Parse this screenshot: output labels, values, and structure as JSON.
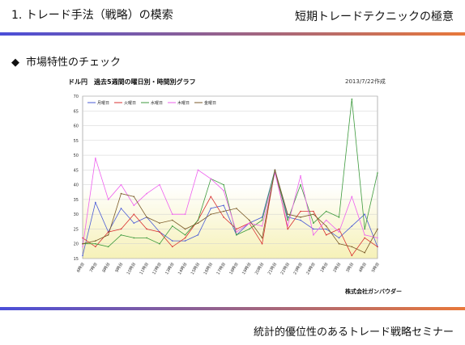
{
  "header": {
    "title": "1. トレード手法（戦略）の模索",
    "subtitle": "短期トレードテクニックの極意"
  },
  "section": {
    "bullet": "◆",
    "title": "市場特性のチェック"
  },
  "footer": {
    "text": "統計的優位性のあるトレード戦略セミナー"
  },
  "colors": {
    "bar_start": "#4a4ed8",
    "bar_end": "#e8783a"
  },
  "chart_data": {
    "type": "line",
    "title": "ドル円　過去5週間の曜日別・時間別グラフ",
    "date": "2013/7/22作成",
    "credit": "株式会社ガンバウダー",
    "categories": [
      "6時台",
      "7時台",
      "8時台",
      "9時台",
      "10時台",
      "11時台",
      "12時台",
      "13時台",
      "14時台",
      "15時台",
      "16時台",
      "17時台",
      "18時台",
      "19時台",
      "20時台",
      "21時台",
      "22時台",
      "23時台",
      "24時台",
      "1時台",
      "2時台",
      "3時台",
      "4時台",
      "5時台"
    ],
    "yticks": [
      15,
      20,
      25,
      30,
      35,
      40,
      45,
      50,
      55,
      60,
      65,
      70
    ],
    "ylim": [
      15,
      70
    ],
    "grid": true,
    "legend_position": "top-left",
    "series": [
      {
        "name": "月曜日",
        "color": "#4a5bd6",
        "values": [
          16,
          34,
          24,
          32,
          27,
          29,
          24,
          21,
          21,
          23,
          32,
          33,
          23,
          27,
          29,
          45,
          29,
          28,
          25,
          25,
          22,
          26,
          30,
          19
        ]
      },
      {
        "name": "火曜日",
        "color": "#d83030",
        "values": [
          22,
          19,
          24,
          25,
          30,
          25,
          24,
          19,
          22,
          28,
          36,
          29,
          25,
          27,
          20,
          45,
          25,
          31,
          31,
          23,
          25,
          16,
          22,
          19
        ]
      },
      {
        "name": "水曜日",
        "color": "#3d9a3d",
        "values": [
          20,
          20,
          19,
          23,
          22,
          22,
          20,
          26,
          23,
          28,
          42,
          40,
          23,
          25,
          28,
          45,
          28,
          40,
          27,
          31,
          29,
          69,
          25,
          44
        ]
      },
      {
        "name": "木曜日",
        "color": "#ee60ee",
        "values": [
          19,
          49,
          35,
          40,
          33,
          37,
          40,
          30,
          30,
          45,
          42,
          38,
          24,
          27,
          26,
          44,
          26,
          43,
          23,
          28,
          24,
          36,
          23,
          22
        ]
      },
      {
        "name": "金曜日",
        "color": "#7a5a28",
        "values": [
          20,
          21,
          23,
          37,
          36,
          29,
          27,
          28,
          25,
          27,
          30,
          31,
          32,
          28,
          22,
          45,
          30,
          29,
          30,
          26,
          20,
          19,
          17,
          25
        ]
      }
    ]
  }
}
